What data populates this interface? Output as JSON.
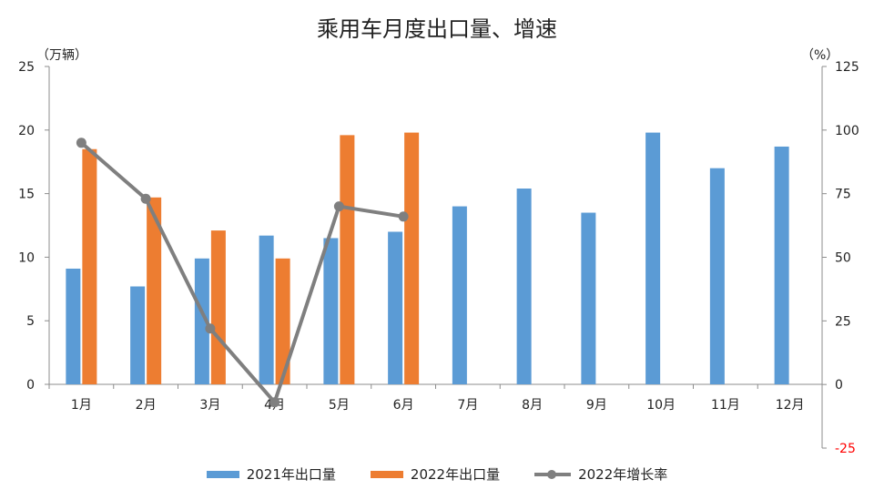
{
  "chart_data": {
    "type": "bar",
    "title": "乘用车月度出口量、增速",
    "left_axis_unit": "（万辆）",
    "right_axis_unit": "（%）",
    "categories": [
      "1月",
      "2月",
      "3月",
      "4月",
      "5月",
      "6月",
      "7月",
      "8月",
      "9月",
      "10月",
      "11月",
      "12月"
    ],
    "ylim_left": [
      0,
      25
    ],
    "yticks_left": [
      "0",
      "5",
      "10",
      "15",
      "20",
      "25"
    ],
    "ylim_right": [
      -25,
      125
    ],
    "yticks_right": [
      "-25",
      "0",
      "25",
      "50",
      "75",
      "100",
      "125"
    ],
    "negative_tick_color": "#ff0000",
    "grid": false,
    "legend_position": "bottom",
    "series": [
      {
        "name": "2021年出口量",
        "type": "bar",
        "axis": "left",
        "color": "#5b9bd5",
        "values": [
          9.1,
          7.7,
          9.9,
          11.7,
          11.5,
          12.0,
          14.0,
          15.4,
          13.5,
          19.8,
          17.0,
          18.7
        ]
      },
      {
        "name": "2022年出口量",
        "type": "bar",
        "axis": "left",
        "color": "#ed7d31",
        "values": [
          18.5,
          14.7,
          12.1,
          9.9,
          19.6,
          19.8,
          null,
          null,
          null,
          null,
          null,
          null
        ]
      },
      {
        "name": "2022年增长率",
        "type": "line",
        "axis": "right",
        "color": "#7f7f7f",
        "values": [
          95,
          73,
          22,
          -7,
          70,
          66,
          null,
          null,
          null,
          null,
          null,
          null
        ]
      }
    ]
  }
}
